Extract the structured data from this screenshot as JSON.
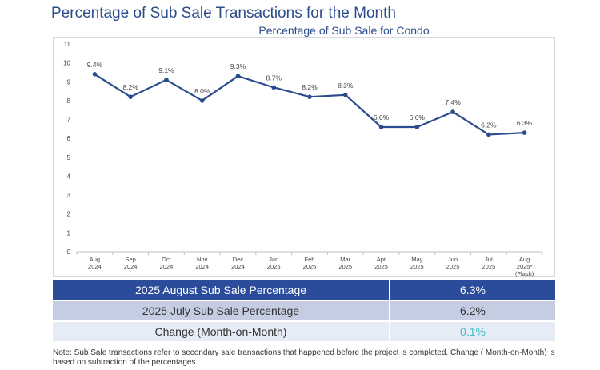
{
  "page_title": "Percentage of Sub Sale Transactions for the Month",
  "chart_data": {
    "type": "line",
    "title": "Percentage of Sub Sale for Condo",
    "xlabel": "",
    "ylabel": "",
    "ylim": [
      0,
      11
    ],
    "yticks": [
      0,
      1,
      2,
      3,
      4,
      5,
      6,
      7,
      8,
      9,
      10,
      11
    ],
    "categories": [
      [
        "Aug",
        "2024"
      ],
      [
        "Sep",
        "2024"
      ],
      [
        "Oct",
        "2024"
      ],
      [
        "Nov",
        "2024"
      ],
      [
        "Dec",
        "2024"
      ],
      [
        "Jan",
        "2025"
      ],
      [
        "Feb",
        "2025"
      ],
      [
        "Mar",
        "2025"
      ],
      [
        "Apr",
        "2025"
      ],
      [
        "May",
        "2025"
      ],
      [
        "Jun",
        "2025"
      ],
      [
        "Jul",
        "2025"
      ],
      [
        "Aug",
        "2025*",
        "(Flash)"
      ]
    ],
    "series": [
      {
        "name": "Sub Sale %",
        "color": "#2b4c8c",
        "values": [
          9.4,
          8.2,
          9.1,
          8.0,
          9.3,
          8.7,
          8.2,
          8.3,
          6.6,
          6.6,
          7.4,
          6.2,
          6.3
        ],
        "labels": [
          "9.4%",
          "8.2%",
          "9.1%",
          "8.0%",
          "9.3%",
          "8.7%",
          "8.2%",
          "8.3%",
          "6.6%",
          "6.6%",
          "7.4%",
          "6.2%",
          "6.3%"
        ]
      }
    ],
    "grid": false
  },
  "summary": {
    "rows": [
      {
        "label": "2025 August Sub Sale Percentage",
        "value": "6.3%"
      },
      {
        "label": "2025 July Sub Sale Percentage",
        "value": "6.2%"
      },
      {
        "label": "Change (Month-on-Month)",
        "value": "0.1%"
      }
    ]
  },
  "note": "Note: Sub Sale transactions refer to secondary sale transactions that happened before the project is completed. Change ( Month-on-Month) is based on subtraction of the percentages."
}
